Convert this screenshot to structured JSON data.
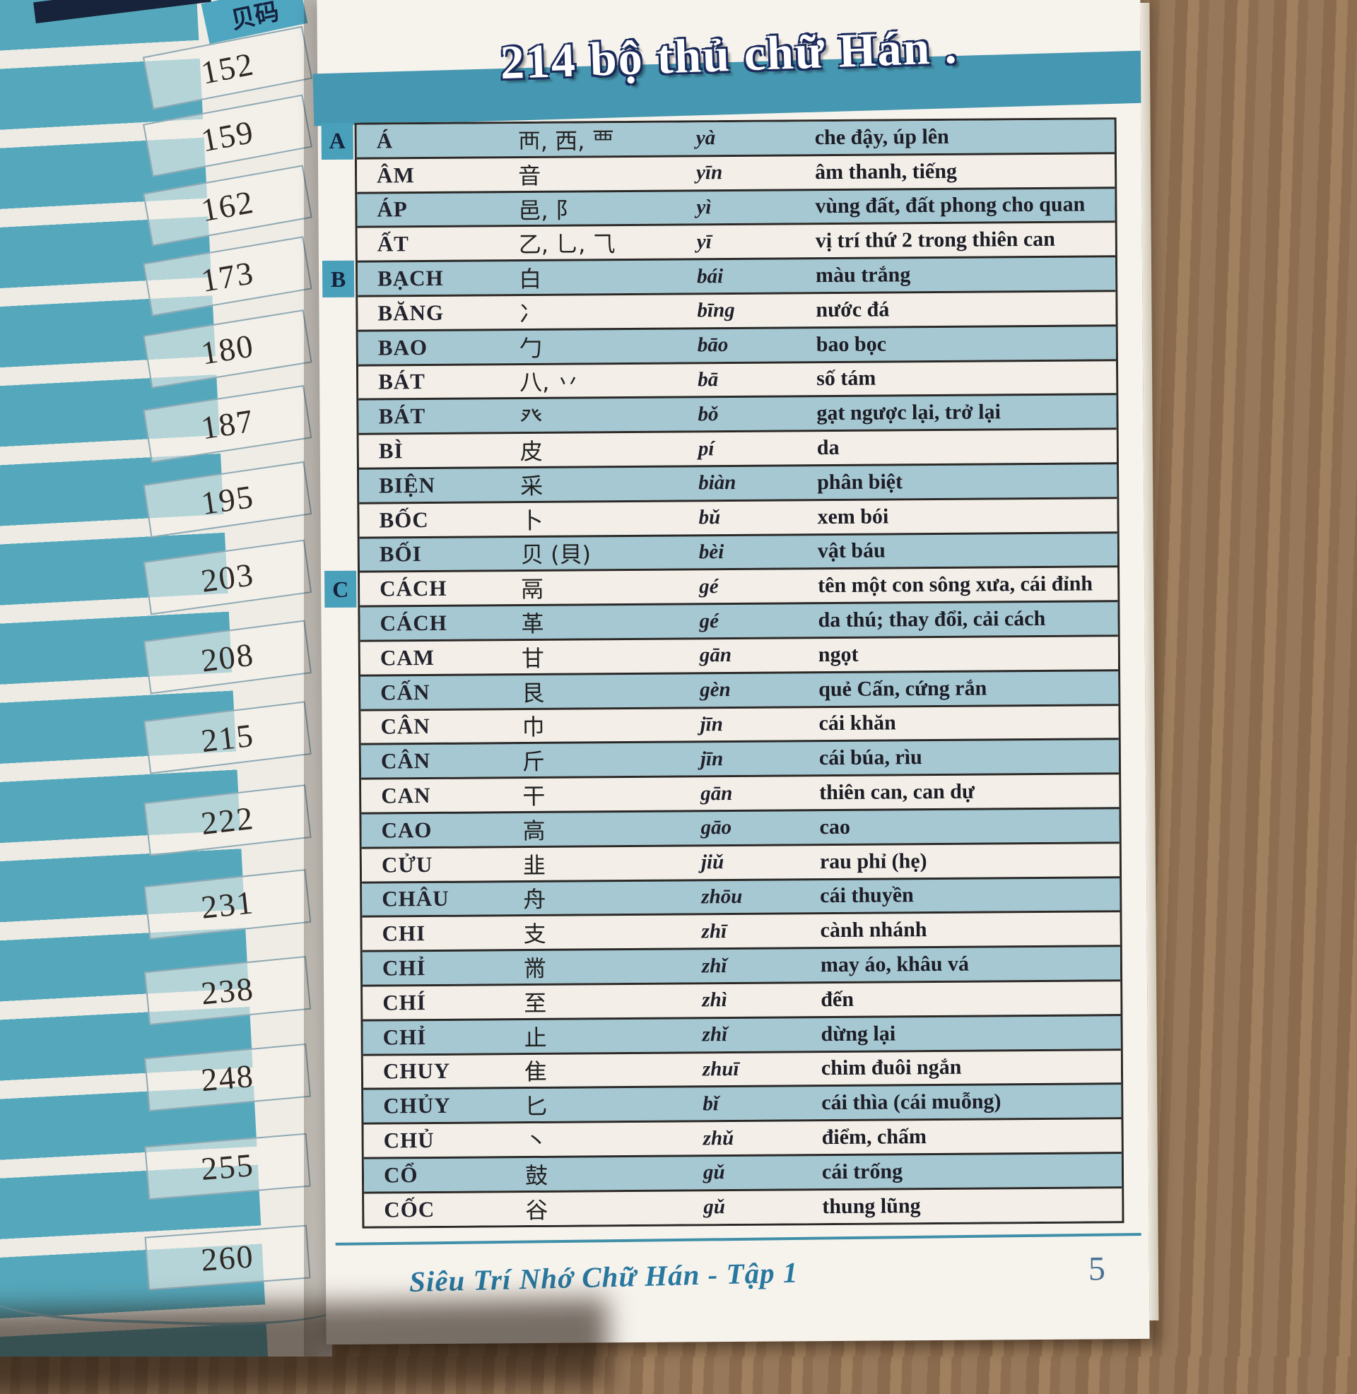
{
  "left_page": {
    "header": "贝码",
    "numbers": [
      "152",
      "159",
      "162",
      "173",
      "180",
      "187",
      "195",
      "203",
      "208",
      "215",
      "222",
      "231",
      "238",
      "248",
      "255",
      "260"
    ]
  },
  "right_page": {
    "title": "214 bộ thủ chữ Hán .",
    "footer": "Siêu Trí Nhớ Chữ Hán - Tập 1",
    "page_number": "5",
    "table": {
      "sections": [
        {
          "letter": "A",
          "rows": [
            {
              "name": "Á",
              "hanzi": "襾, 西, 覀",
              "pinyin": "yà",
              "meaning": "che đậy, úp lên"
            },
            {
              "name": "ÂM",
              "hanzi": "音",
              "pinyin": "yīn",
              "meaning": "âm thanh, tiếng"
            },
            {
              "name": "ÁP",
              "hanzi": "邑, 阝",
              "pinyin": "yì",
              "meaning": "vùng đất, đất phong cho quan"
            },
            {
              "name": "ẤT",
              "hanzi": "乙, 乚, ⺄",
              "pinyin": "yī",
              "meaning": "vị trí thứ 2 trong thiên can"
            }
          ]
        },
        {
          "letter": "B",
          "rows": [
            {
              "name": "BẠCH",
              "hanzi": "白",
              "pinyin": "bái",
              "meaning": "màu trắng"
            },
            {
              "name": "BĂNG",
              "hanzi": "冫",
              "pinyin": "bīng",
              "meaning": "nước đá"
            },
            {
              "name": "BAO",
              "hanzi": "勹",
              "pinyin": "bāo",
              "meaning": "bao bọc"
            },
            {
              "name": "BÁT",
              "hanzi": "八, 丷",
              "pinyin": "bā",
              "meaning": "số tám"
            },
            {
              "name": "BÁT",
              "hanzi": "癶",
              "pinyin": "bǒ",
              "meaning": "gạt ngược lại, trở lại"
            },
            {
              "name": "BÌ",
              "hanzi": "皮",
              "pinyin": "pí",
              "meaning": "da"
            },
            {
              "name": "BIỆN",
              "hanzi": "采",
              "pinyin": "biàn",
              "meaning": "phân biệt"
            },
            {
              "name": "BỐC",
              "hanzi": "卜",
              "pinyin": "bǔ",
              "meaning": "xem bói"
            },
            {
              "name": "BỐI",
              "hanzi": "贝 (貝)",
              "pinyin": "bèi",
              "meaning": "vật báu"
            }
          ]
        },
        {
          "letter": "C",
          "rows": [
            {
              "name": "CÁCH",
              "hanzi": "鬲",
              "pinyin": "gé",
              "meaning": "tên một con sông xưa, cái đỉnh"
            },
            {
              "name": "CÁCH",
              "hanzi": "革",
              "pinyin": "gé",
              "meaning": "da thú; thay đổi, cải cách"
            },
            {
              "name": "CAM",
              "hanzi": "甘",
              "pinyin": "gān",
              "meaning": "ngọt"
            },
            {
              "name": "CẤN",
              "hanzi": "艮",
              "pinyin": "gèn",
              "meaning": "quẻ Cấn, cứng rắn"
            },
            {
              "name": "CÂN",
              "hanzi": "巾",
              "pinyin": "jīn",
              "meaning": "cái khăn"
            },
            {
              "name": "CÂN",
              "hanzi": "斤",
              "pinyin": "jīn",
              "meaning": "cái búa, rìu"
            },
            {
              "name": "CAN",
              "hanzi": "干",
              "pinyin": "gān",
              "meaning": "thiên can, can dự"
            },
            {
              "name": "CAO",
              "hanzi": "高",
              "pinyin": "gāo",
              "meaning": "cao"
            },
            {
              "name": "CỬU",
              "hanzi": "韭",
              "pinyin": "jiǔ",
              "meaning": "rau phỉ (hẹ)"
            },
            {
              "name": "CHÂU",
              "hanzi": "舟",
              "pinyin": "zhōu",
              "meaning": "cái thuyền"
            },
            {
              "name": "CHI",
              "hanzi": "支",
              "pinyin": "zhī",
              "meaning": "cành nhánh"
            },
            {
              "name": "CHỈ",
              "hanzi": "黹",
              "pinyin": "zhǐ",
              "meaning": "may áo, khâu vá"
            },
            {
              "name": "CHÍ",
              "hanzi": "至",
              "pinyin": "zhì",
              "meaning": "đến"
            },
            {
              "name": "CHỈ",
              "hanzi": "止",
              "pinyin": "zhǐ",
              "meaning": "dừng lại"
            },
            {
              "name": "CHUY",
              "hanzi": "隹",
              "pinyin": "zhuī",
              "meaning": "chim đuôi ngắn"
            },
            {
              "name": "CHỦY",
              "hanzi": "匕",
              "pinyin": "bǐ",
              "meaning": "cái thìa (cái muỗng)"
            },
            {
              "name": "CHỦ",
              "hanzi": "丶",
              "pinyin": "zhǔ",
              "meaning": "điểm, chấm"
            },
            {
              "name": "CỔ",
              "hanzi": "鼓",
              "pinyin": "gǔ",
              "meaning": "cái trống"
            },
            {
              "name": "CỐC",
              "hanzi": "谷",
              "pinyin": "gǔ",
              "meaning": "thung lũng"
            }
          ]
        }
      ]
    }
  }
}
